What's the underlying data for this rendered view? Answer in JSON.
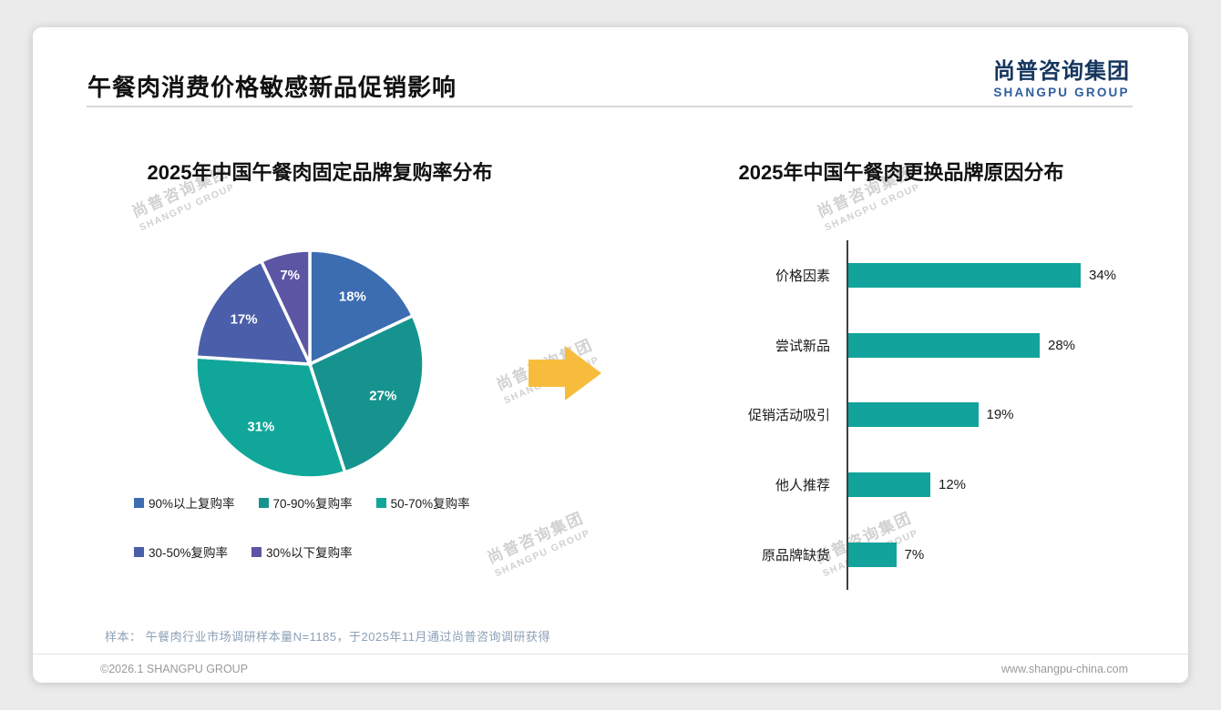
{
  "header": {
    "title": "午餐肉消费价格敏感新品促销影响",
    "logo_cn": "尚普咨询集团",
    "logo_en": "SHANGPU GROUP"
  },
  "watermark": {
    "cn": "尚普咨询集团",
    "en": "SHANGPU GROUP"
  },
  "chart_data": [
    {
      "type": "pie",
      "title": "2025年中国午餐肉固定品牌复购率分布",
      "labels": [
        "90%以上复购率",
        "70-90%复购率",
        "50-70%复购率",
        "30-50%复购率",
        "30%以下复购率"
      ],
      "values": [
        18,
        27,
        31,
        17,
        7
      ],
      "value_suffix": "%",
      "colors": [
        "#3d6db1",
        "#16938e",
        "#10a79a",
        "#4a5ea9",
        "#5c55a4"
      ],
      "legend_position": "bottom",
      "start_angle": "top",
      "direction": "clockwise"
    },
    {
      "type": "bar",
      "orientation": "horizontal",
      "title": "2025年中国午餐肉更换品牌原因分布",
      "categories": [
        "价格因素",
        "尝试新品",
        "促销活动吸引",
        "他人推荐",
        "原品牌缺货"
      ],
      "values": [
        34,
        28,
        19,
        12,
        7
      ],
      "value_suffix": "%",
      "bar_color": "#12a39c",
      "xlim": [
        0,
        40
      ],
      "grid": "off"
    }
  ],
  "decor": {
    "arrow_color": "#f8bc3d",
    "axis_color": "#3f3f3f"
  },
  "footer": {
    "sample_note": "样本： 午餐肉行业市场调研样本量N=1185，于2025年11月通过尚普咨询调研获得",
    "copyright": "©2026.1 SHANGPU GROUP",
    "website": "www.shangpu-china.com"
  }
}
